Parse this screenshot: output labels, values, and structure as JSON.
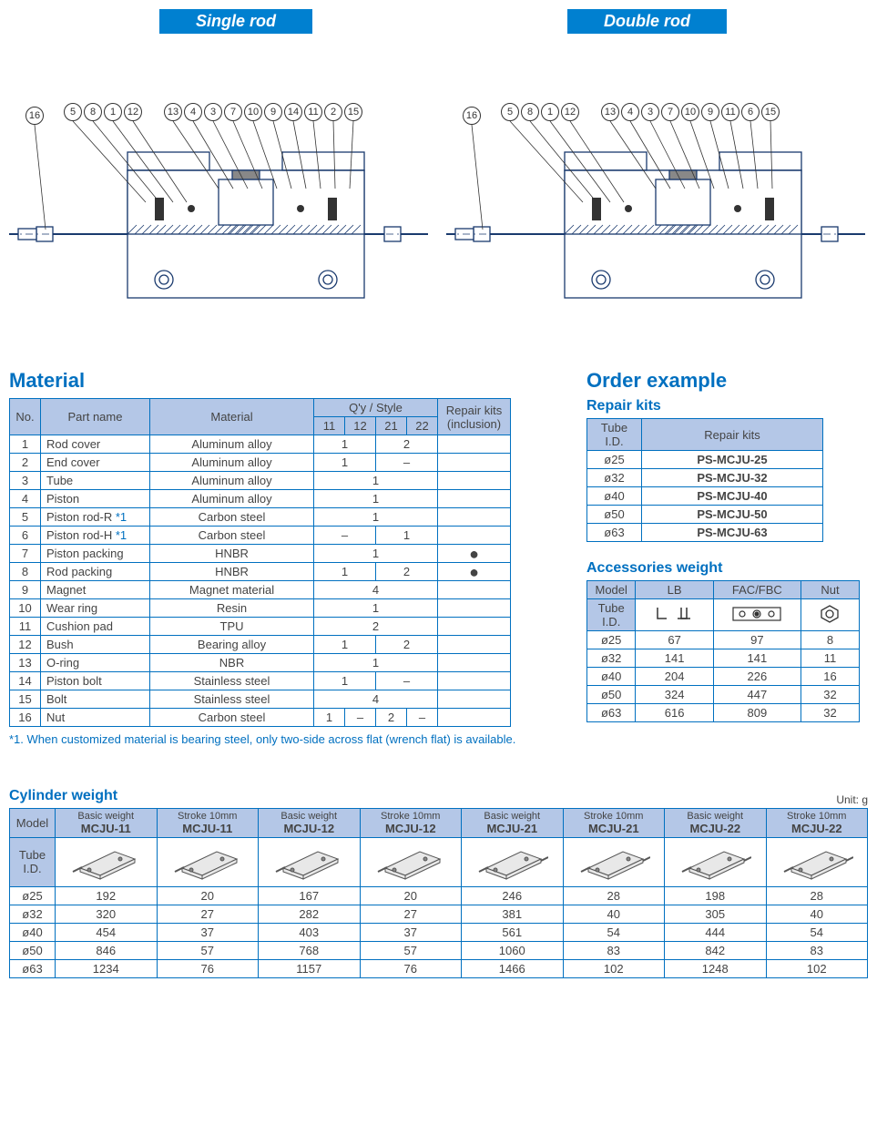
{
  "tabs": {
    "single": "Single rod",
    "double": "Double rod"
  },
  "callouts_single": [
    "16",
    "5",
    "8",
    "1",
    "12",
    "13",
    "4",
    "3",
    "7",
    "10",
    "9",
    "14",
    "11",
    "2",
    "15"
  ],
  "callouts_double": [
    "16",
    "5",
    "8",
    "1",
    "12",
    "13",
    "4",
    "3",
    "7",
    "10",
    "9",
    "11",
    "6",
    "15"
  ],
  "sections": {
    "material": "Material",
    "order_example": "Order example",
    "repair_kits": "Repair kits",
    "accessories_weight": "Accessories weight",
    "cylinder_weight": "Cylinder weight"
  },
  "material_table": {
    "headers": {
      "no": "No.",
      "part": "Part name",
      "mat": "Material",
      "qty": "Q'y / Style",
      "q11": "11",
      "q12": "12",
      "q21": "21",
      "q22": "22",
      "repair": "Repair kits (inclusion)"
    },
    "rows": [
      {
        "no": "1",
        "part": "Rod cover",
        "mat": "Aluminum alloy",
        "q11": "1",
        "q12": "",
        "q21": "2",
        "q22": "",
        "repair": ""
      },
      {
        "no": "2",
        "part": "End cover",
        "mat": "Aluminum alloy",
        "q11": "1",
        "q12": "",
        "q21": "–",
        "q22": "",
        "repair": ""
      },
      {
        "no": "3",
        "part": "Tube",
        "mat": "Aluminum alloy",
        "q11": "",
        "q12": "1",
        "q21": "",
        "q22": "",
        "repair": "",
        "span": true
      },
      {
        "no": "4",
        "part": "Piston",
        "mat": "Aluminum alloy",
        "q11": "",
        "q12": "1",
        "q21": "",
        "q22": "",
        "repair": "",
        "span": true
      },
      {
        "no": "5",
        "part": "Piston rod-R *1",
        "mat": "Carbon steel",
        "q11": "",
        "q12": "1",
        "q21": "",
        "q22": "",
        "repair": "",
        "span": true,
        "star": true
      },
      {
        "no": "6",
        "part": "Piston rod-H *1",
        "mat": "Carbon steel",
        "q11": "–",
        "q12": "",
        "q21": "1",
        "q22": "",
        "repair": "",
        "star": true
      },
      {
        "no": "7",
        "part": "Piston packing",
        "mat": "HNBR",
        "q11": "",
        "q12": "1",
        "q21": "",
        "q22": "",
        "repair": "●",
        "span": true
      },
      {
        "no": "8",
        "part": "Rod packing",
        "mat": "HNBR",
        "q11": "1",
        "q12": "",
        "q21": "2",
        "q22": "",
        "repair": "●"
      },
      {
        "no": "9",
        "part": "Magnet",
        "mat": "Magnet material",
        "q11": "",
        "q12": "4",
        "q21": "",
        "q22": "",
        "repair": "",
        "span": true
      },
      {
        "no": "10",
        "part": "Wear ring",
        "mat": "Resin",
        "q11": "",
        "q12": "1",
        "q21": "",
        "q22": "",
        "repair": "",
        "span": true
      },
      {
        "no": "11",
        "part": "Cushion pad",
        "mat": "TPU",
        "q11": "",
        "q12": "2",
        "q21": "",
        "q22": "",
        "repair": "",
        "span": true
      },
      {
        "no": "12",
        "part": "Bush",
        "mat": "Bearing alloy",
        "q11": "1",
        "q12": "",
        "q21": "2",
        "q22": "",
        "repair": ""
      },
      {
        "no": "13",
        "part": "O-ring",
        "mat": "NBR",
        "q11": "",
        "q12": "1",
        "q21": "",
        "q22": "",
        "repair": "",
        "span": true
      },
      {
        "no": "14",
        "part": "Piston bolt",
        "mat": "Stainless steel",
        "q11": "1",
        "q12": "",
        "q21": "–",
        "q22": "",
        "repair": ""
      },
      {
        "no": "15",
        "part": "Bolt",
        "mat": "Stainless steel",
        "q11": "",
        "q12": "4",
        "q21": "",
        "q22": "",
        "repair": "",
        "span": true
      },
      {
        "no": "16",
        "part": "Nut",
        "mat": "Carbon steel",
        "q11": "1",
        "q12": "–",
        "q21": "2",
        "q22": "–",
        "repair": "",
        "all4": true
      }
    ],
    "footnote": "*1. When customized material is bearing steel, only two-side across flat (wrench flat) is available."
  },
  "repair_kits_table": {
    "headers": {
      "tube": "Tube I.D.",
      "kit": "Repair kits"
    },
    "rows": [
      {
        "id": "ø25",
        "kit": "PS-MCJU-25"
      },
      {
        "id": "ø32",
        "kit": "PS-MCJU-32"
      },
      {
        "id": "ø40",
        "kit": "PS-MCJU-40"
      },
      {
        "id": "ø50",
        "kit": "PS-MCJU-50"
      },
      {
        "id": "ø63",
        "kit": "PS-MCJU-63"
      }
    ]
  },
  "accessories_table": {
    "headers": {
      "model": "Model",
      "lb": "LB",
      "fac": "FAC/FBC",
      "nut": "Nut",
      "tube": "Tube I.D."
    },
    "rows": [
      {
        "id": "ø25",
        "lb": "67",
        "fac": "97",
        "nut": "8"
      },
      {
        "id": "ø32",
        "lb": "141",
        "fac": "141",
        "nut": "11"
      },
      {
        "id": "ø40",
        "lb": "204",
        "fac": "226",
        "nut": "16"
      },
      {
        "id": "ø50",
        "lb": "324",
        "fac": "447",
        "nut": "32"
      },
      {
        "id": "ø63",
        "lb": "616",
        "fac": "809",
        "nut": "32"
      }
    ]
  },
  "cylinder_table": {
    "unit": "Unit: g",
    "model_label_basic": "Basic weight",
    "model_label_stroke": "Stroke 10mm",
    "headers": {
      "model": "Model",
      "tube": "Tube I.D."
    },
    "cols": [
      "MCJU-11",
      "MCJU-11",
      "MCJU-12",
      "MCJU-12",
      "MCJU-21",
      "MCJU-21",
      "MCJU-22",
      "MCJU-22"
    ],
    "col_types": [
      "basic",
      "stroke",
      "basic",
      "stroke",
      "basic",
      "stroke",
      "basic",
      "stroke"
    ],
    "rows": [
      {
        "id": "ø25",
        "v": [
          "192",
          "20",
          "167",
          "20",
          "246",
          "28",
          "198",
          "28"
        ]
      },
      {
        "id": "ø32",
        "v": [
          "320",
          "27",
          "282",
          "27",
          "381",
          "40",
          "305",
          "40"
        ]
      },
      {
        "id": "ø40",
        "v": [
          "454",
          "37",
          "403",
          "37",
          "561",
          "54",
          "444",
          "54"
        ]
      },
      {
        "id": "ø50",
        "v": [
          "846",
          "57",
          "768",
          "57",
          "1060",
          "83",
          "842",
          "83"
        ]
      },
      {
        "id": "ø63",
        "v": [
          "1234",
          "76",
          "1157",
          "76",
          "1466",
          "102",
          "1248",
          "102"
        ]
      }
    ]
  },
  "colors": {
    "blue": "#0070c0",
    "tab_blue": "#0080d0",
    "header_bg": "#b4c7e7",
    "text": "#444444"
  }
}
